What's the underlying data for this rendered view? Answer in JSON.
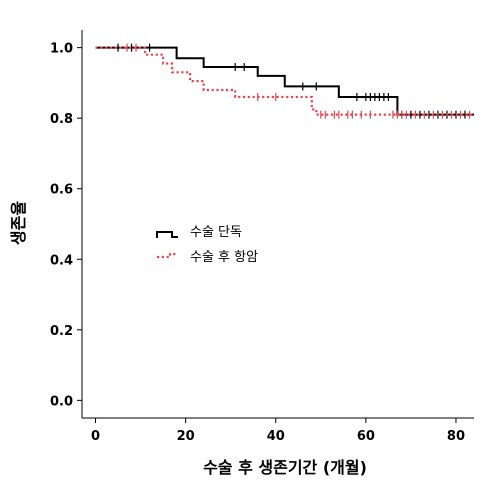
{
  "chart_data": {
    "type": "line",
    "subtype": "kaplan-meier survival curve",
    "title": "",
    "xlabel": "수술 후 생존기간 (개월)",
    "ylabel": "생존율",
    "xlim": [
      -3,
      84
    ],
    "ylim": [
      -0.05,
      1.05
    ],
    "x_ticks": [
      0,
      20,
      40,
      60,
      80
    ],
    "y_ticks": [
      0.0,
      0.2,
      0.4,
      0.6,
      0.8,
      1.0
    ],
    "x_tick_labels": [
      "0",
      "20",
      "40",
      "60",
      "80"
    ],
    "y_tick_labels": [
      "0.0",
      "0.2",
      "0.4",
      "0.6",
      "0.8",
      "1.0"
    ],
    "grid": false,
    "legend_position": "center-left",
    "series": [
      {
        "name": "수술 단독",
        "color": "#000000",
        "line_style": "solid",
        "steps": [
          [
            0,
            1.0
          ],
          [
            18,
            0.97
          ],
          [
            24,
            0.945
          ],
          [
            36,
            0.92
          ],
          [
            42,
            0.89
          ],
          [
            54,
            0.86
          ],
          [
            67,
            0.81
          ],
          [
            84,
            0.81
          ]
        ],
        "censored": [
          [
            5,
            1.0
          ],
          [
            8,
            1.0
          ],
          [
            12,
            1.0
          ],
          [
            31,
            0.945
          ],
          [
            33,
            0.945
          ],
          [
            46,
            0.89
          ],
          [
            49,
            0.89
          ],
          [
            58,
            0.86
          ],
          [
            60,
            0.86
          ],
          [
            61,
            0.86
          ],
          [
            62,
            0.86
          ],
          [
            63,
            0.86
          ],
          [
            64,
            0.86
          ],
          [
            65,
            0.86
          ],
          [
            68,
            0.81
          ],
          [
            70,
            0.81
          ],
          [
            72,
            0.81
          ],
          [
            74,
            0.81
          ],
          [
            76,
            0.81
          ],
          [
            78,
            0.81
          ],
          [
            80,
            0.81
          ],
          [
            82,
            0.81
          ]
        ]
      },
      {
        "name": "수술 후 항암",
        "color": "#e8454c",
        "line_style": "dotted",
        "steps": [
          [
            0,
            1.0
          ],
          [
            11,
            0.98
          ],
          [
            15,
            0.955
          ],
          [
            17,
            0.93
          ],
          [
            21,
            0.905
          ],
          [
            24,
            0.88
          ],
          [
            31,
            0.86
          ],
          [
            48,
            0.825
          ],
          [
            49,
            0.81
          ],
          [
            84,
            0.81
          ]
        ],
        "censored": [
          [
            7,
            1.0
          ],
          [
            9,
            1.0
          ],
          [
            36,
            0.86
          ],
          [
            40,
            0.86
          ],
          [
            50,
            0.81
          ],
          [
            51,
            0.81
          ],
          [
            53,
            0.81
          ],
          [
            54,
            0.81
          ],
          [
            56,
            0.81
          ],
          [
            57,
            0.81
          ],
          [
            59,
            0.81
          ],
          [
            61,
            0.81
          ],
          [
            66,
            0.81
          ],
          [
            67,
            0.81
          ],
          [
            68,
            0.81
          ],
          [
            69,
            0.81
          ],
          [
            71,
            0.81
          ],
          [
            73,
            0.81
          ],
          [
            75,
            0.81
          ],
          [
            77,
            0.81
          ],
          [
            79,
            0.81
          ],
          [
            81,
            0.81
          ],
          [
            83,
            0.81
          ]
        ]
      }
    ]
  }
}
